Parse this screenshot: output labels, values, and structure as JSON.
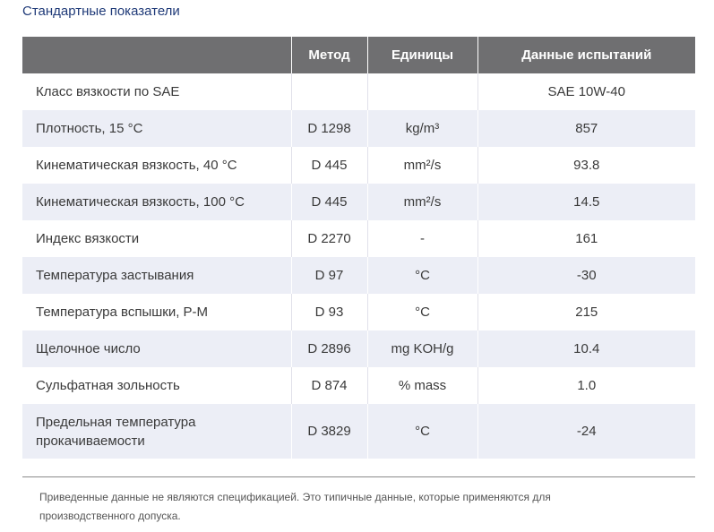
{
  "section_title": "Стандартные показатели",
  "table": {
    "headers": [
      "",
      "Метод",
      "Единицы",
      "Данные испытаний"
    ],
    "rows": [
      {
        "property": "Класс вязкости по SAE",
        "method": "",
        "units": "",
        "value": "SAE 10W-40"
      },
      {
        "property": "Плотность, 15 °C",
        "method": "D 1298",
        "units": "kg/m³",
        "value": "857"
      },
      {
        "property": "Кинематическая вязкость, 40 °C",
        "method": "D 445",
        "units": "mm²/s",
        "value": "93.8"
      },
      {
        "property": "Кинематическая вязкость, 100 °C",
        "method": "D 445",
        "units": "mm²/s",
        "value": "14.5"
      },
      {
        "property": "Индекс вязкости",
        "method": "D 2270",
        "units": "-",
        "value": "161"
      },
      {
        "property": "Температура застывания",
        "method": "D 97",
        "units": "°C",
        "value": "-30"
      },
      {
        "property": "Температура вспышки, P-M",
        "method": "D 93",
        "units": "°C",
        "value": "215"
      },
      {
        "property": "Щелочное число",
        "method": "D 2896",
        "units": "mg KOH/g",
        "value": "10.4"
      },
      {
        "property": "Сульфатная зольность",
        "method": "D 874",
        "units": "% mass",
        "value": "1.0"
      },
      {
        "property": "Предельная температура прокачиваемости",
        "method": "D 3829",
        "units": "°C",
        "value": "-24"
      }
    ]
  },
  "footnote": "Приведенные данные не являются спецификацией. Это типичные данные, которые применяются для производственного допуска."
}
